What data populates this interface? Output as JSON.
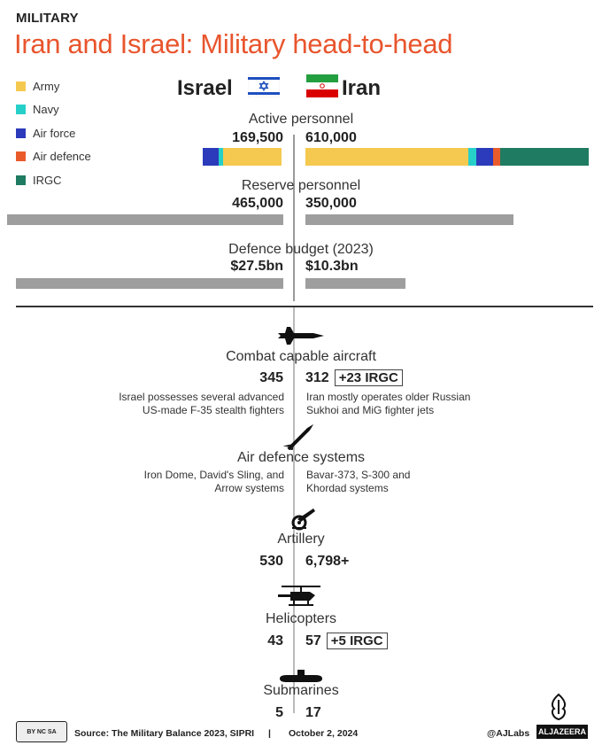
{
  "header": {
    "kicker": "MILITARY",
    "title": "Iran and Israel: Military head-to-head"
  },
  "countries": {
    "left": "Israel",
    "right": "Iran"
  },
  "legend": [
    {
      "label": "Army",
      "color": "#f5c94f"
    },
    {
      "label": "Navy",
      "color": "#26d0c9"
    },
    {
      "label": "Air force",
      "color": "#2b3bbb"
    },
    {
      "label": "Air defence",
      "color": "#ea5b2b"
    },
    {
      "label": "IRGC",
      "color": "#1f7b62"
    }
  ],
  "chart_data": [
    {
      "type": "bar",
      "title": "Active personnel",
      "categories": [
        "Israel",
        "Iran"
      ],
      "series": [
        {
          "name": "Army",
          "values": [
            126000,
            350000
          ]
        },
        {
          "name": "Navy",
          "values": [
            9500,
            18000
          ]
        },
        {
          "name": "Air force",
          "values": [
            34000,
            37000
          ]
        },
        {
          "name": "Air defence",
          "values": [
            0,
            15000
          ]
        },
        {
          "name": "IRGC",
          "values": [
            0,
            190000
          ]
        }
      ],
      "labels": [
        "169,500",
        "610,000"
      ]
    },
    {
      "type": "bar",
      "title": "Reserve personnel",
      "categories": [
        "Israel",
        "Iran"
      ],
      "values": [
        465000,
        350000
      ],
      "labels": [
        "465,000",
        "350,000"
      ]
    },
    {
      "type": "bar",
      "title": "Defence budget (2023)",
      "categories": [
        "Israel",
        "Iran"
      ],
      "values": [
        27.5,
        10.3
      ],
      "labels": [
        "$27.5bn",
        "$10.3bn"
      ]
    }
  ],
  "sections": {
    "aircraft": {
      "title": "Combat capable aircraft",
      "left": "345",
      "right": "312",
      "badge": "+23 IRGC",
      "note_left": [
        "Israel possesses several advanced",
        "US-made F-35 stealth fighters"
      ],
      "note_right": [
        "Iran mostly operates older Russian",
        "Sukhoi and MiG fighter jets"
      ]
    },
    "airdefence": {
      "title": "Air defence systems",
      "note_left": [
        "Iron Dome, David's Sling, and",
        "Arrow systems"
      ],
      "note_right": [
        "Bavar-373, S-300 and",
        "Khordad systems"
      ]
    },
    "artillery": {
      "title": "Artillery",
      "left": "530",
      "right": "6,798+"
    },
    "helicopters": {
      "title": "Helicopters",
      "left": "43",
      "right": "57",
      "badge": "+5 IRGC"
    },
    "submarines": {
      "title": "Submarines",
      "left": "5",
      "right": "17"
    }
  },
  "footer": {
    "source": "Source:  The Military Balance 2023, SIPRI",
    "separator": "|",
    "date": "October 2, 2024",
    "handle": "@AJLabs",
    "brand": "ALJAZEERA",
    "license": "BY NC SA"
  },
  "icons": [
    "fighter-jet-icon",
    "missile-icon",
    "artillery-icon",
    "helicopter-icon",
    "submarine-icon",
    "cc-license-icon",
    "aljazeera-logo-icon"
  ]
}
